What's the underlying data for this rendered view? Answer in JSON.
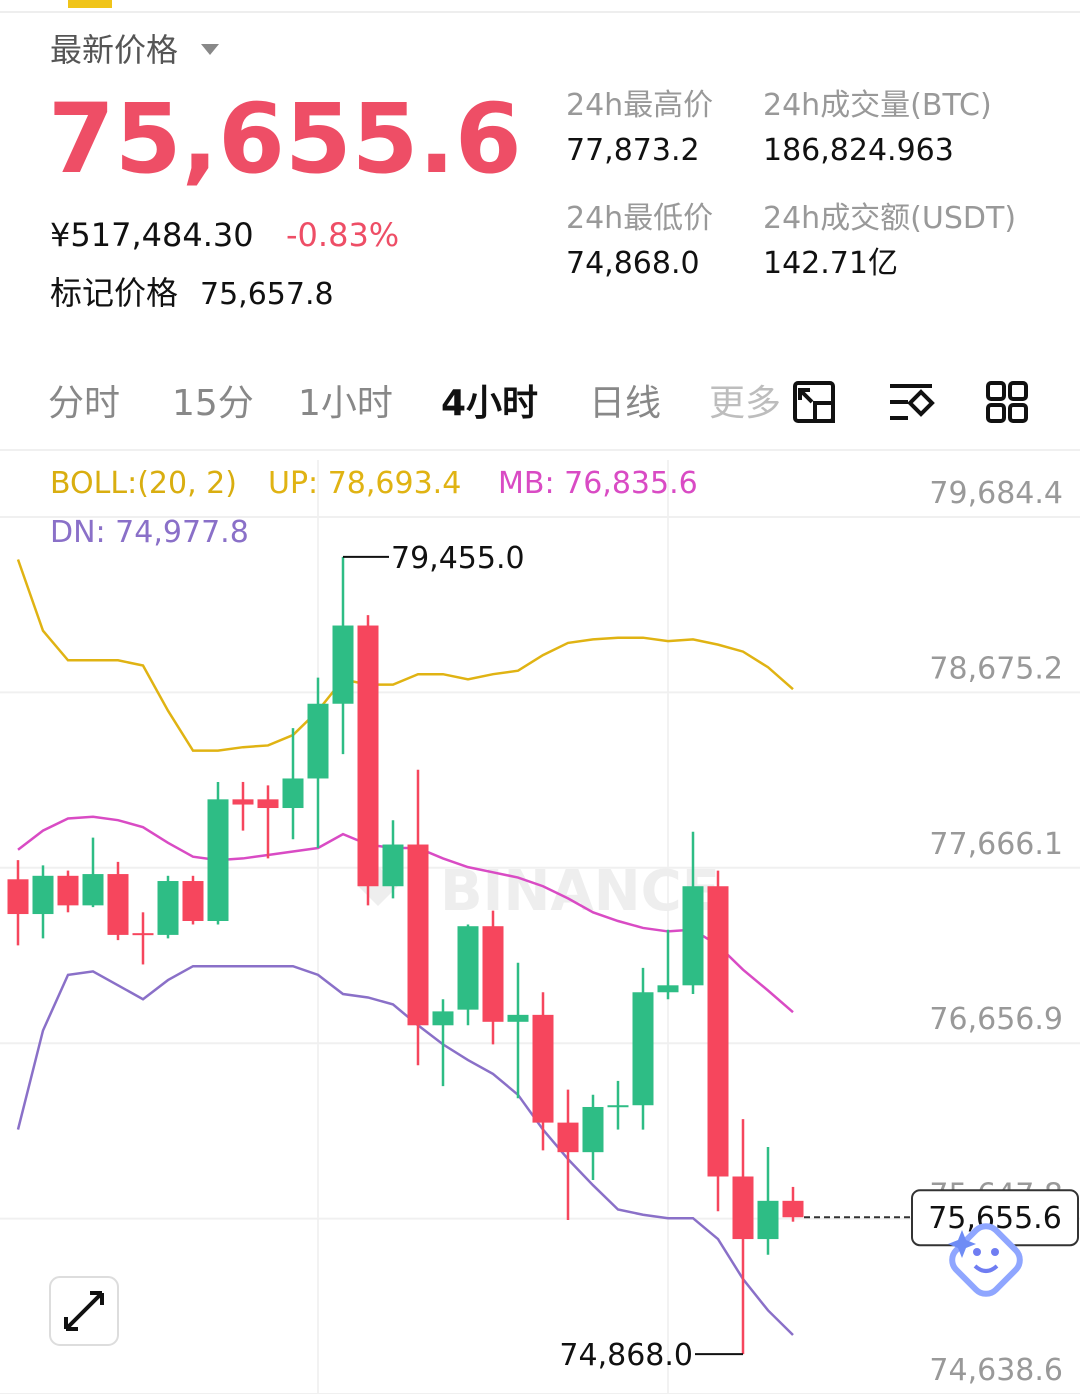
{
  "header": {
    "price_label": "最新价格",
    "price": "75,655.6",
    "cny": "¥517,484.30",
    "change": "-0.83%",
    "mark_label": "标记价格",
    "mark_price": "75,657.8",
    "stats": [
      {
        "label": "24h最高价",
        "value": "77,873.2"
      },
      {
        "label": "24h成交量(BTC)",
        "value": "186,824.963"
      },
      {
        "label": "24h最低价",
        "value": "74,868.0"
      },
      {
        "label": "24h成交额(USDT)",
        "value": "142.71亿"
      }
    ]
  },
  "tabs": [
    "分时",
    "15分",
    "1小时",
    "4小时",
    "日线",
    "更多"
  ],
  "active_tab": 3,
  "chart_data": {
    "type": "candlestick",
    "indicator": "BOLL:(20, 2)",
    "watermark": "BINANCE",
    "up_color": "#2ebd85",
    "down_color": "#f6465d",
    "ylim": [
      74638.6,
      79684.4
    ],
    "yticks": [
      {
        "value": 74638.6,
        "label": "74,638.6"
      },
      {
        "value": 75647.8,
        "label": "75,647.8"
      },
      {
        "value": 76656.9,
        "label": "76,656.9"
      },
      {
        "value": 77666.1,
        "label": "77,666.1"
      },
      {
        "value": 78675.2,
        "label": "78,675.2"
      },
      {
        "value": 79684.4,
        "label": "79,684.4"
      }
    ],
    "grid": true,
    "open": [
      77600,
      77400,
      77620,
      77450,
      77630,
      77290,
      77280,
      77590,
      77360,
      78060,
      78060,
      78010,
      78180,
      78610,
      79060,
      77560,
      77800,
      76760,
      76850,
      77330,
      76780,
      76820,
      76200,
      76030,
      76290,
      76300,
      76950,
      76990,
      77560,
      75890,
      75530,
      75750
    ],
    "high": [
      77710,
      77680,
      77650,
      77840,
      77700,
      77410,
      77620,
      77620,
      78160,
      78160,
      78140,
      78470,
      78760,
      79455.0,
      79120,
      77940,
      78230,
      76910,
      77340,
      77420,
      77120,
      76950,
      76390,
      76360,
      76440,
      77090,
      77310,
      77873.2,
      77650,
      76220,
      76060,
      75830
    ],
    "low": [
      77220,
      77260,
      77410,
      77440,
      77250,
      77110,
      77260,
      77340,
      77340,
      77880,
      77720,
      77830,
      77780,
      78320,
      77450,
      77490,
      76530,
      76410,
      76760,
      76650,
      76340,
      76040,
      75640,
      75870,
      76160,
      76160,
      76910,
      76940,
      75690,
      74868.0,
      75440,
      75630
    ],
    "close": [
      77400,
      77620,
      77450,
      77630,
      77280,
      77280,
      77590,
      77360,
      78060,
      78030,
      78010,
      78180,
      78610,
      79060,
      77560,
      77800,
      76760,
      76840,
      77330,
      76780,
      76820,
      76200,
      76030,
      76290,
      76300,
      76950,
      76990,
      77560,
      75890,
      75530,
      75750,
      75655.6
    ],
    "series": [
      {
        "name": "UP: 78,693.4",
        "color": "#e0b313",
        "values": [
          79440,
          79030,
          78860,
          78860,
          78860,
          78830,
          78570,
          78340,
          78340,
          78360,
          78370,
          78430,
          78570,
          78750,
          78720,
          78720,
          78780,
          78780,
          78750,
          78780,
          78800,
          78890,
          78960,
          78980,
          78990,
          78990,
          78970,
          78980,
          78950,
          78910,
          78820,
          78693.4
        ]
      },
      {
        "name": "MB: 76,835.6",
        "color": "#d94bc4",
        "values": [
          77770,
          77880,
          77950,
          77960,
          77940,
          77900,
          77810,
          77730,
          77710,
          77720,
          77740,
          77760,
          77780,
          77860,
          77800,
          77780,
          77780,
          77720,
          77670,
          77640,
          77610,
          77560,
          77490,
          77410,
          77360,
          77320,
          77300,
          77310,
          77220,
          77080,
          76960,
          76835.6
        ]
      },
      {
        "name": "DN: 74,977.8",
        "color": "#8a70c8",
        "values": [
          76160,
          76730,
          77050,
          77070,
          76990,
          76910,
          77020,
          77100,
          77100,
          77100,
          77100,
          77100,
          77050,
          76940,
          76920,
          76880,
          76760,
          76650,
          76560,
          76480,
          76360,
          76160,
          75990,
          75840,
          75700,
          75670,
          75650,
          75650,
          75530,
          75300,
          75120,
          74977.8
        ]
      }
    ],
    "annotations": [
      {
        "value": 79455.0,
        "label": "79,455.0"
      },
      {
        "value": 74868.0,
        "label": "74,868.0"
      }
    ]
  }
}
